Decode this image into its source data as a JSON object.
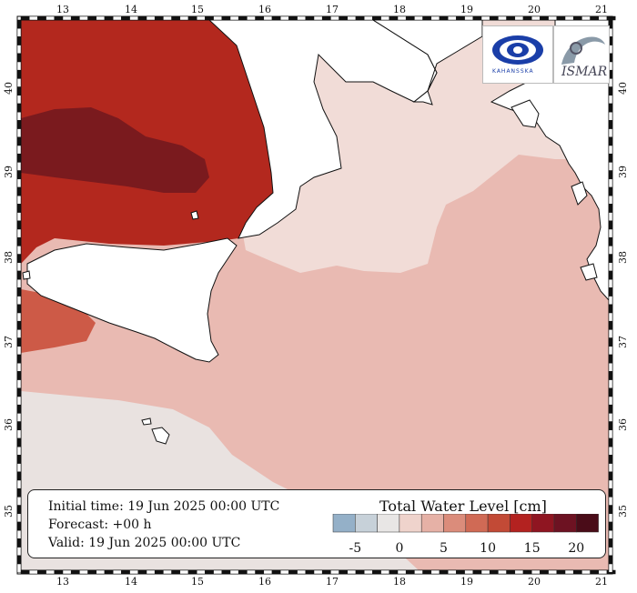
{
  "map": {
    "lon_ticks": [
      "13",
      "14",
      "15",
      "16",
      "17",
      "18",
      "19",
      "20",
      "21"
    ],
    "lat_ticks": [
      "40",
      "39",
      "38",
      "37",
      "36",
      "35"
    ],
    "colors": {
      "sea_base": "#e9bab2",
      "light_band": "#f1dcd7",
      "very_light": "#e9e2e0",
      "dark_red": "#b3281e",
      "darker_red": "#7a1a1e",
      "mid_red": "#cd5a47",
      "land": "#ffffff",
      "coast": "#111111"
    }
  },
  "info": {
    "initial": "Initial time: 19 Jun 2025 00:00 UTC",
    "forecast": "Forecast: +00 h",
    "valid": "Valid: 19 Jun 2025 00:00 UTC"
  },
  "legend": {
    "title": "Total Water Level [cm]",
    "colors": [
      "#94b0c8",
      "#c7d1d9",
      "#e8e6e5",
      "#efd3cc",
      "#e6b1a6",
      "#db8c7b",
      "#d06a55",
      "#c24a36",
      "#b32220",
      "#8f1521",
      "#6d1222",
      "#4a0c18"
    ],
    "labels": [
      "-5",
      "0",
      "5",
      "10",
      "15",
      "20"
    ]
  },
  "logos": {
    "left_text": "KAHANSSKA",
    "right_text": "ISMAR"
  }
}
